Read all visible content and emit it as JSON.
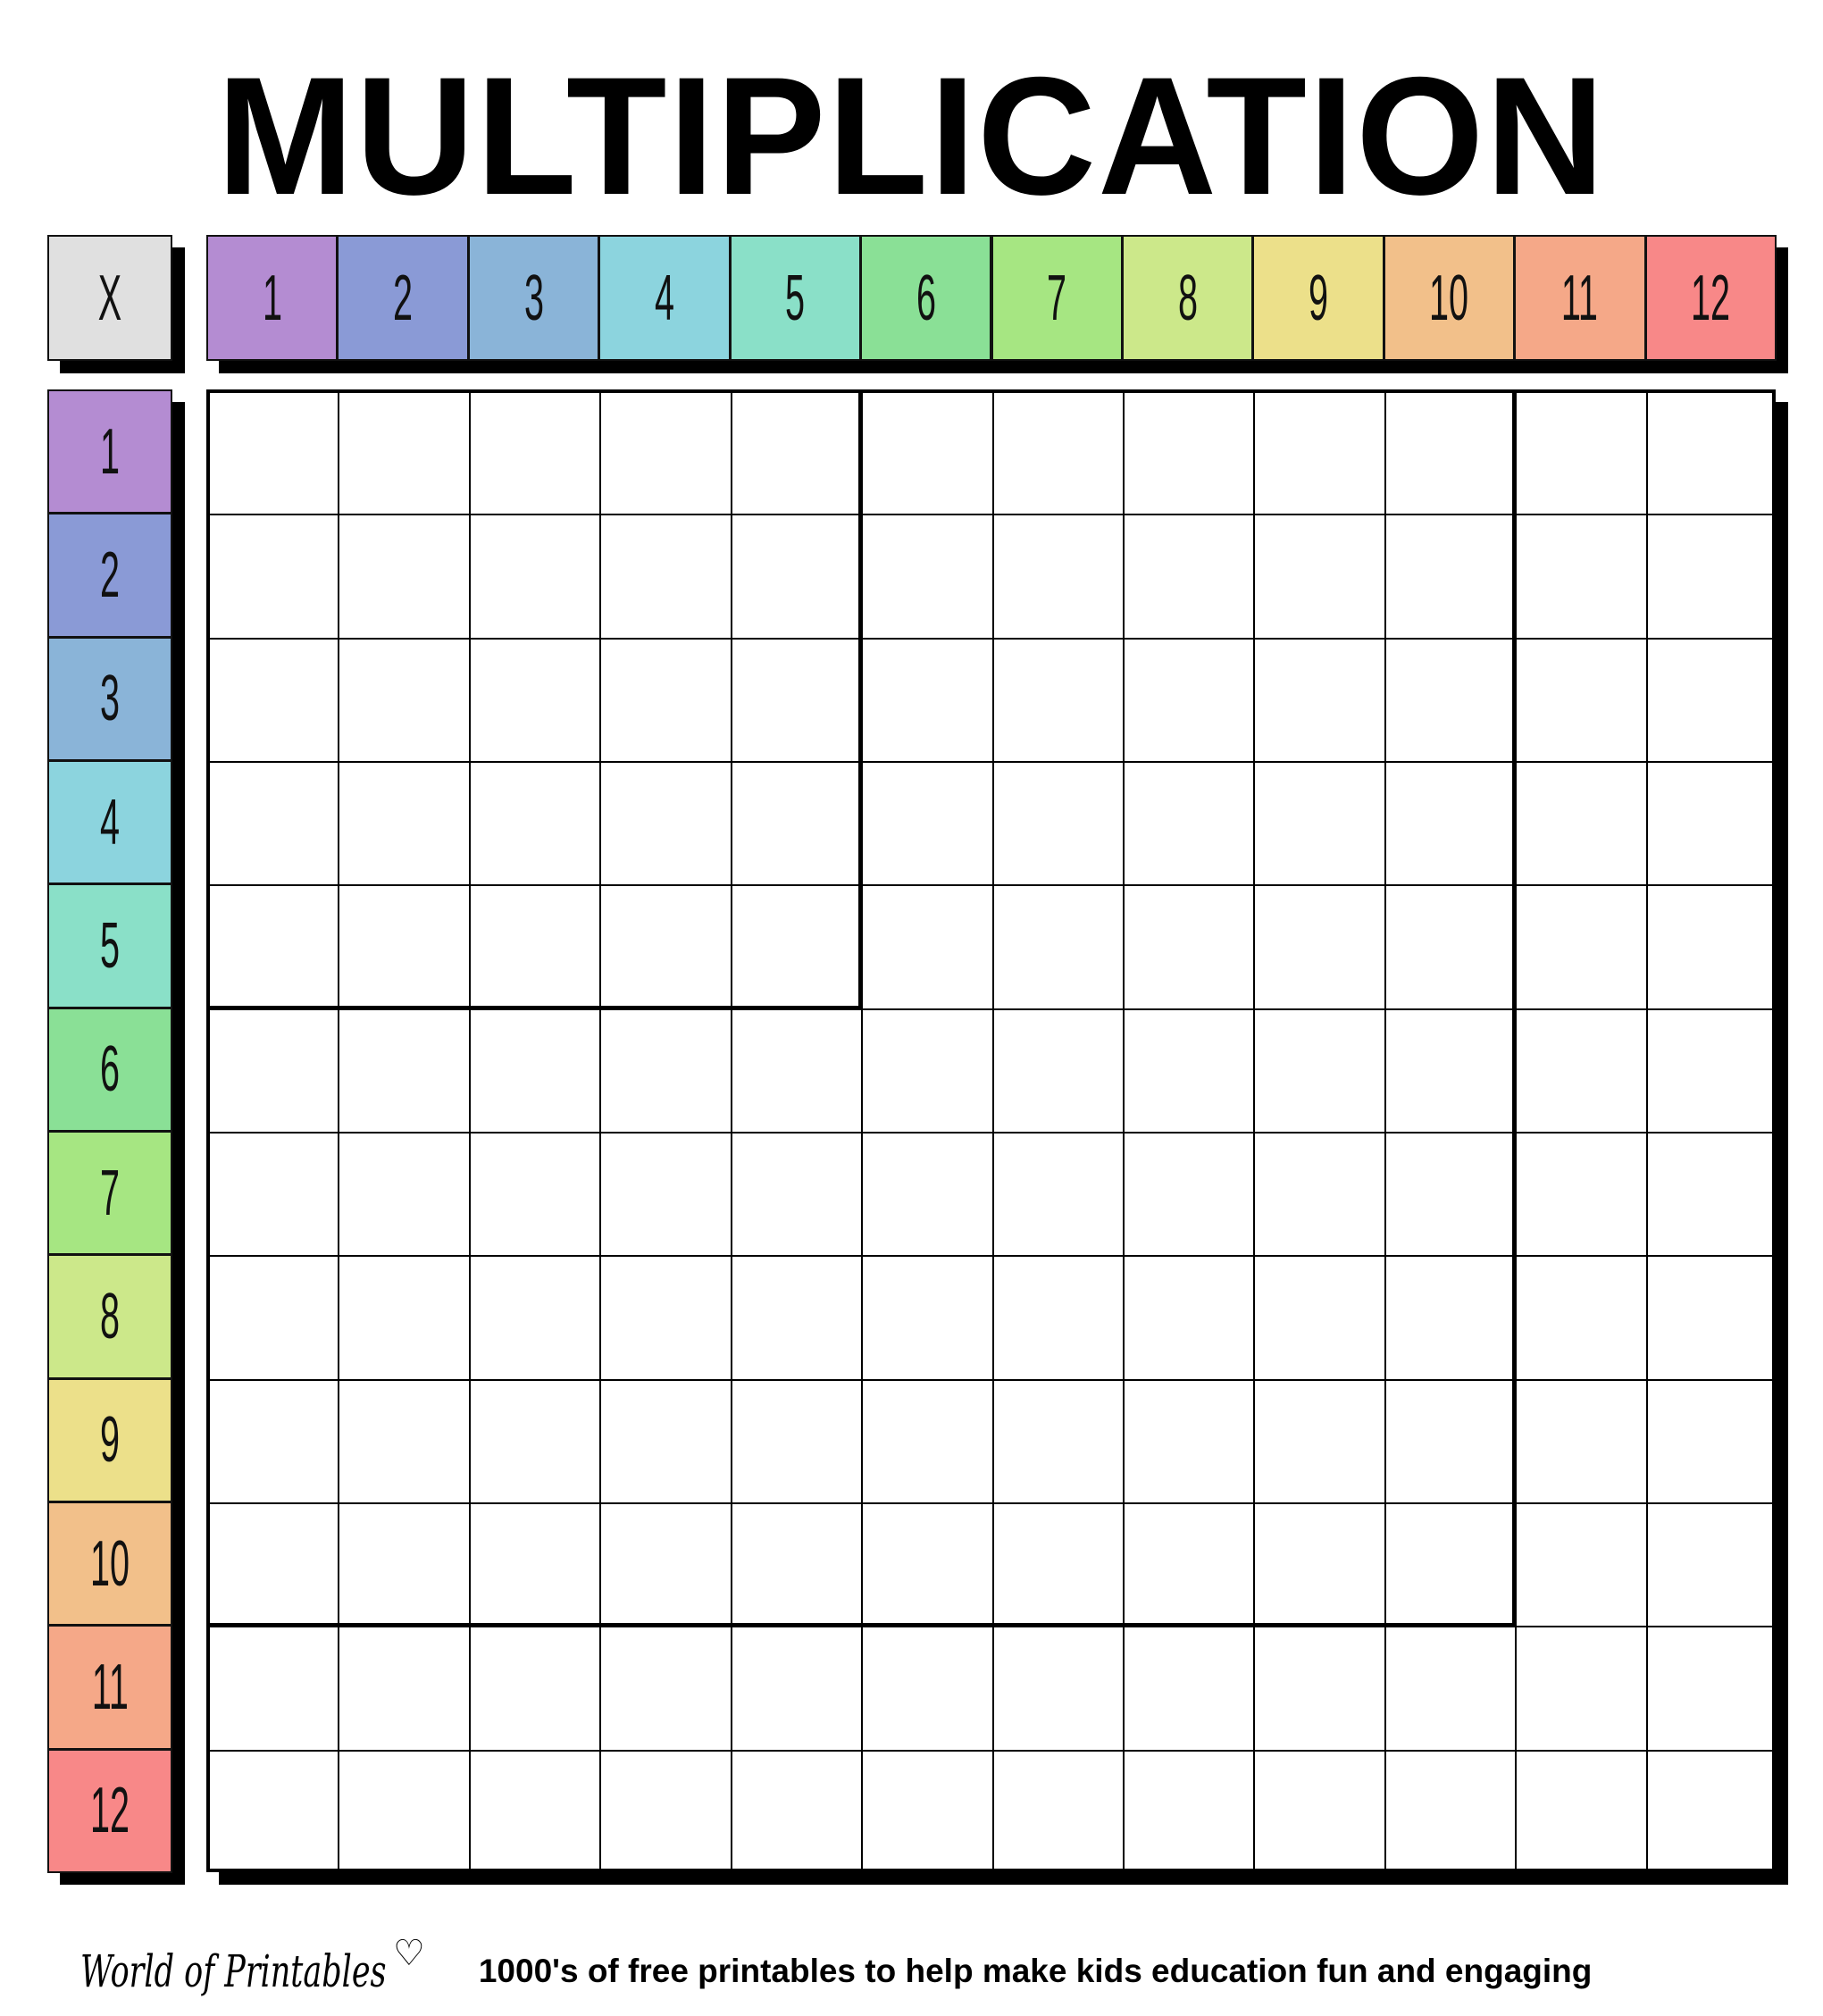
{
  "title": "MULTIPLICATION",
  "corner_label": "X",
  "columns": [
    "1",
    "2",
    "3",
    "4",
    "5",
    "6",
    "7",
    "8",
    "9",
    "10",
    "11",
    "12"
  ],
  "rows": [
    "1",
    "2",
    "3",
    "4",
    "5",
    "6",
    "7",
    "8",
    "9",
    "10",
    "11",
    "12"
  ],
  "colors": [
    "#b48cd2",
    "#8a9ad6",
    "#8ab4d8",
    "#8cd4de",
    "#8ae0c8",
    "#8ae096",
    "#a6e682",
    "#cce88a",
    "#ece08a",
    "#f2c08a",
    "#f5a888",
    "#f88888"
  ],
  "corner_color": "#e0e0e0",
  "footer": {
    "brand": "World of Printables",
    "tagline": "1000's of free printables to help make kids education fun and engaging"
  }
}
